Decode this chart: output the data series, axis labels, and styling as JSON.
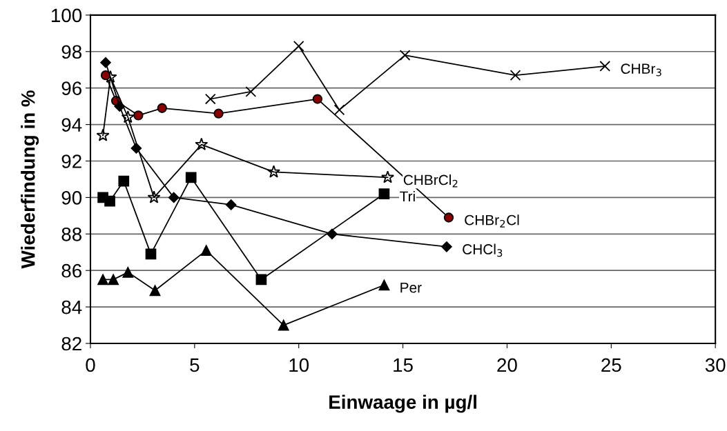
{
  "chart_data": {
    "type": "line",
    "xlabel": "Einwaage in µg/l",
    "ylabel": "Wiederfindung in %",
    "xlim": [
      0,
      30
    ],
    "xticks": [
      0,
      5,
      10,
      15,
      20,
      25,
      30
    ],
    "ylim": [
      82,
      100
    ],
    "yticks": [
      82,
      84,
      86,
      88,
      90,
      92,
      94,
      96,
      98,
      100
    ],
    "grid": "y",
    "legend": false,
    "line_style": "solid",
    "series": [
      {
        "name": "CHBr$_{3}$",
        "color": "#000000",
        "marker": "cross",
        "x": [
          5.76,
          7.7,
          10.0,
          11.95,
          15.1,
          20.4,
          24.7
        ],
        "values": [
          95.4,
          95.8,
          98.3,
          94.8,
          97.8,
          96.7,
          97.2
        ]
      },
      {
        "name": "CHBrCl$_{2}$",
        "color": "#000000",
        "marker": "star",
        "x": [
          0.6,
          0.96,
          1.8,
          3.05,
          5.33,
          8.8,
          14.27
        ],
        "values": [
          93.4,
          96.6,
          94.4,
          90.0,
          92.9,
          91.4,
          91.1
        ]
      },
      {
        "name": "CHBr$_{2}$Cl",
        "color": "#8b0000",
        "marker": "circle",
        "x": [
          0.73,
          1.23,
          2.3,
          3.44,
          6.15,
          10.9,
          17.2
        ],
        "values": [
          96.7,
          95.3,
          94.5,
          94.9,
          94.6,
          95.4,
          88.9
        ]
      },
      {
        "name": "CHCl$_{3}$",
        "color": "#000000",
        "marker": "diamond",
        "x": [
          0.73,
          1.4,
          2.2,
          4.0,
          6.75,
          11.6,
          17.1
        ],
        "values": [
          97.4,
          95.0,
          92.7,
          90.0,
          89.6,
          88.0,
          87.3
        ]
      },
      {
        "name": "Tri",
        "color": "#000000",
        "marker": "square",
        "x": [
          0.6,
          0.93,
          1.6,
          2.9,
          4.83,
          8.2,
          14.1
        ],
        "values": [
          90.0,
          89.8,
          90.9,
          86.9,
          91.1,
          85.5,
          90.2
        ]
      },
      {
        "name": "Per",
        "color": "#000000",
        "marker": "triangle",
        "x": [
          0.6,
          1.1,
          1.8,
          3.1,
          5.56,
          9.27,
          14.1
        ],
        "values": [
          85.5,
          85.5,
          85.9,
          84.9,
          87.1,
          83.0,
          85.2
        ]
      }
    ]
  }
}
